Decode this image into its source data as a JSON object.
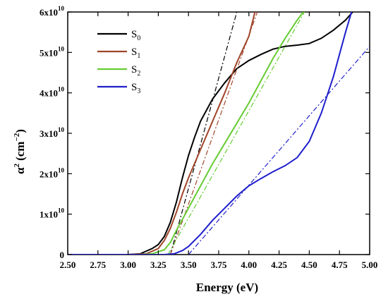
{
  "chart_data": {
    "type": "line",
    "xlabel": "Energy (eV)",
    "ylabel": {
      "base": "α",
      "sup": "2",
      "unit": "(cm",
      "unit_sup": "−2",
      "close": ")"
    },
    "xlim": [
      2.5,
      5.0
    ],
    "ylim": [
      0,
      6
    ],
    "x_ticks": [
      "2.50",
      "2.75",
      "3.00",
      "3.25",
      "3.50",
      "3.75",
      "4.00",
      "4.25",
      "4.50",
      "4.75",
      "5.00"
    ],
    "y_ticks": [
      {
        "value": 0,
        "base": "0",
        "exp": ""
      },
      {
        "value": 1,
        "base": "1x10",
        "exp": "10"
      },
      {
        "value": 2,
        "base": "2x10",
        "exp": "10"
      },
      {
        "value": 3,
        "base": "3x10",
        "exp": "10"
      },
      {
        "value": 4,
        "base": "4x10",
        "exp": "10"
      },
      {
        "value": 5,
        "base": "5x10",
        "exp": "10"
      },
      {
        "value": 6,
        "base": "6x10",
        "exp": "10"
      }
    ],
    "grid": false,
    "legend_position": "top-left",
    "series": [
      {
        "name": "S",
        "sub": "0",
        "color": "#000000",
        "points": [
          [
            2.5,
            0
          ],
          [
            3.0,
            0
          ],
          [
            3.1,
            0.02
          ],
          [
            3.2,
            0.15
          ],
          [
            3.25,
            0.25
          ],
          [
            3.3,
            0.45
          ],
          [
            3.35,
            0.8
          ],
          [
            3.4,
            1.3
          ],
          [
            3.45,
            1.9
          ],
          [
            3.5,
            2.45
          ],
          [
            3.55,
            2.9
          ],
          [
            3.6,
            3.3
          ],
          [
            3.7,
            3.85
          ],
          [
            3.8,
            4.25
          ],
          [
            3.9,
            4.6
          ],
          [
            4.0,
            4.8
          ],
          [
            4.1,
            4.95
          ],
          [
            4.2,
            5.08
          ],
          [
            4.3,
            5.15
          ],
          [
            4.4,
            5.18
          ],
          [
            4.5,
            5.22
          ],
          [
            4.6,
            5.35
          ],
          [
            4.7,
            5.55
          ],
          [
            4.8,
            5.8
          ],
          [
            4.86,
            6.0
          ]
        ],
        "tangent": [
          [
            3.35,
            0
          ],
          [
            3.9,
            6.0
          ]
        ]
      },
      {
        "name": "S",
        "sub": "1",
        "color": "#a0452a",
        "points": [
          [
            2.5,
            0
          ],
          [
            3.0,
            0
          ],
          [
            3.15,
            0.02
          ],
          [
            3.25,
            0.15
          ],
          [
            3.3,
            0.35
          ],
          [
            3.35,
            0.65
          ],
          [
            3.4,
            1.05
          ],
          [
            3.45,
            1.5
          ],
          [
            3.5,
            1.9
          ],
          [
            3.6,
            2.6
          ],
          [
            3.7,
            3.3
          ],
          [
            3.8,
            4.0
          ],
          [
            3.9,
            4.75
          ],
          [
            4.0,
            5.4
          ],
          [
            4.05,
            6.0
          ]
        ],
        "tangent": [
          [
            3.35,
            0
          ],
          [
            4.07,
            6.0
          ]
        ]
      },
      {
        "name": "S",
        "sub": "2",
        "color": "#66cc33",
        "points": [
          [
            2.5,
            0
          ],
          [
            3.1,
            0
          ],
          [
            3.2,
            0.02
          ],
          [
            3.3,
            0.12
          ],
          [
            3.35,
            0.3
          ],
          [
            3.4,
            0.6
          ],
          [
            3.5,
            1.15
          ],
          [
            3.6,
            1.7
          ],
          [
            3.7,
            2.25
          ],
          [
            3.8,
            2.75
          ],
          [
            3.9,
            3.25
          ],
          [
            4.0,
            3.75
          ],
          [
            4.1,
            4.3
          ],
          [
            4.2,
            4.85
          ],
          [
            4.3,
            5.35
          ],
          [
            4.4,
            5.8
          ],
          [
            4.45,
            6.0
          ]
        ],
        "tangent": [
          [
            3.33,
            0
          ],
          [
            4.46,
            6.0
          ]
        ]
      },
      {
        "name": "S",
        "sub": "3",
        "color": "#1f1fcc",
        "points": [
          [
            2.5,
            0
          ],
          [
            3.3,
            0
          ],
          [
            3.38,
            0.02
          ],
          [
            3.45,
            0.1
          ],
          [
            3.5,
            0.2
          ],
          [
            3.6,
            0.5
          ],
          [
            3.7,
            0.85
          ],
          [
            3.8,
            1.15
          ],
          [
            3.9,
            1.45
          ],
          [
            4.0,
            1.7
          ],
          [
            4.1,
            1.88
          ],
          [
            4.2,
            2.05
          ],
          [
            4.3,
            2.2
          ],
          [
            4.4,
            2.4
          ],
          [
            4.5,
            2.8
          ],
          [
            4.6,
            3.5
          ],
          [
            4.7,
            4.4
          ],
          [
            4.8,
            5.5
          ],
          [
            4.85,
            6.0
          ]
        ],
        "tangent": [
          [
            3.5,
            0
          ],
          [
            5.0,
            5.15
          ]
        ]
      }
    ]
  }
}
